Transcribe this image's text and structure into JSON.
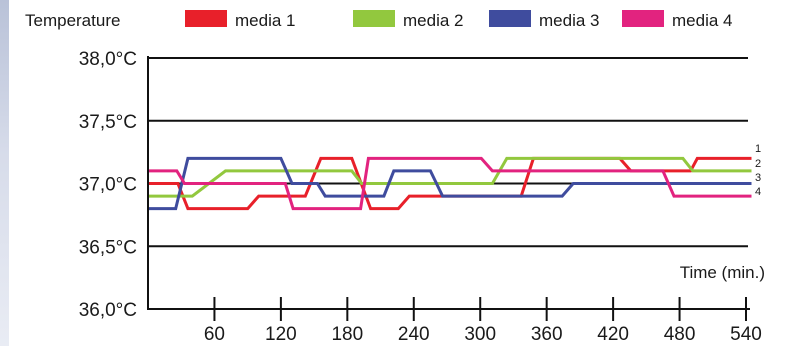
{
  "chart_data": {
    "type": "line",
    "title": "Temperature",
    "xlabel": "Time (min.)",
    "ylabel": "",
    "xlim": [
      0,
      540
    ],
    "ylim": [
      36.0,
      38.0
    ],
    "x_ticks": [
      60,
      120,
      180,
      240,
      300,
      360,
      420,
      480,
      540
    ],
    "x_tick_labels": [
      "60",
      "120",
      "180",
      "240",
      "300",
      "360",
      "420",
      "480",
      "540"
    ],
    "y_ticks": [
      36.0,
      36.5,
      37.0,
      37.5,
      38.0
    ],
    "y_tick_labels": [
      "36,0°C",
      "36,5°C",
      "37,0°C",
      "37,5°C",
      "38,0°C"
    ],
    "grid": "horizontal",
    "legend_position": "top",
    "reference_line": 37.0,
    "series": [
      {
        "name": "media 1",
        "end_label": "1",
        "color": "#e8202a",
        "points": [
          [
            0,
            37.0
          ],
          [
            27,
            37.0
          ],
          [
            36,
            36.8
          ],
          [
            90,
            36.8
          ],
          [
            100,
            36.9
          ],
          [
            142,
            36.9
          ],
          [
            156,
            37.2
          ],
          [
            184,
            37.2
          ],
          [
            201,
            36.8
          ],
          [
            226,
            36.8
          ],
          [
            236,
            36.9
          ],
          [
            313,
            36.9
          ],
          [
            337,
            36.9
          ],
          [
            348,
            37.2
          ],
          [
            426,
            37.2
          ],
          [
            436,
            37.1
          ],
          [
            490,
            37.1
          ],
          [
            496,
            37.2
          ],
          [
            545,
            37.2
          ]
        ]
      },
      {
        "name": "media 2",
        "end_label": "2",
        "color": "#92c83e",
        "points": [
          [
            0,
            36.9
          ],
          [
            40,
            36.9
          ],
          [
            70,
            37.1
          ],
          [
            184,
            37.1
          ],
          [
            193,
            37.0
          ],
          [
            311,
            37.0
          ],
          [
            324,
            37.2
          ],
          [
            483,
            37.2
          ],
          [
            492,
            37.1
          ],
          [
            545,
            37.1
          ]
        ]
      },
      {
        "name": "media 3",
        "end_label": "3",
        "color": "#3f4c9e",
        "points": [
          [
            0,
            36.8
          ],
          [
            25,
            36.8
          ],
          [
            36,
            37.2
          ],
          [
            120,
            37.2
          ],
          [
            130,
            37.0
          ],
          [
            153,
            37.0
          ],
          [
            160,
            36.9
          ],
          [
            213,
            36.9
          ],
          [
            222,
            37.1
          ],
          [
            255,
            37.1
          ],
          [
            266,
            36.9
          ],
          [
            311,
            36.9
          ],
          [
            334,
            36.9
          ],
          [
            374,
            36.9
          ],
          [
            384,
            37.0
          ],
          [
            545,
            37.0
          ]
        ]
      },
      {
        "name": "media 4",
        "end_label": "4",
        "color": "#e2237f",
        "points": [
          [
            0,
            37.1
          ],
          [
            26,
            37.1
          ],
          [
            33,
            37.0
          ],
          [
            124,
            37.0
          ],
          [
            131,
            36.8
          ],
          [
            192,
            36.8
          ],
          [
            199,
            37.2
          ],
          [
            301,
            37.2
          ],
          [
            311,
            37.1
          ],
          [
            465,
            37.1
          ],
          [
            475,
            36.9
          ],
          [
            545,
            36.9
          ]
        ]
      }
    ]
  }
}
